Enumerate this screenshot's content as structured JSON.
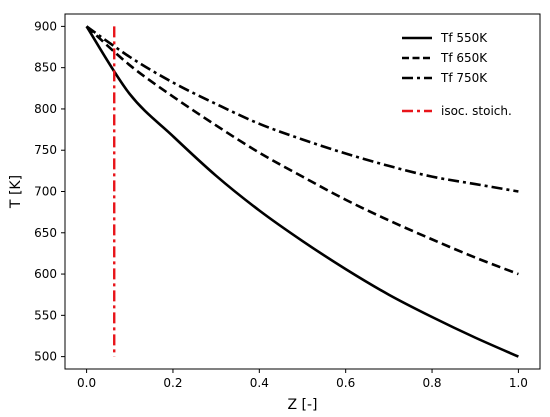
{
  "chart_data": {
    "type": "line",
    "xlabel": "Z [-]",
    "ylabel": "T [K]",
    "xlim": [
      -0.05,
      1.05
    ],
    "ylim": [
      485,
      915
    ],
    "xticks": [
      0.0,
      0.2,
      0.4,
      0.6,
      0.8,
      1.0
    ],
    "xtick_labels": [
      "0.0",
      "0.2",
      "0.4",
      "0.6",
      "0.8",
      "1.0"
    ],
    "yticks": [
      500,
      550,
      600,
      650,
      700,
      750,
      800,
      850,
      900
    ],
    "ytick_labels": [
      "500",
      "550",
      "600",
      "650",
      "700",
      "750",
      "800",
      "850",
      "900"
    ],
    "x": [
      0.0,
      0.1,
      0.2,
      0.3,
      0.4,
      0.5,
      0.6,
      0.7,
      0.8,
      0.9,
      1.0
    ],
    "series": [
      {
        "name": "Tf 550K",
        "style": "solid",
        "color": "#000000",
        "values": [
          900,
          818,
          767,
          719,
          677,
          640,
          606,
          575,
          548,
          523,
          500
        ]
      },
      {
        "name": "Tf 650K",
        "style": "dashed",
        "color": "#000000",
        "values": [
          900,
          853,
          815,
          780,
          747,
          718,
          690,
          665,
          642,
          620,
          600
        ]
      },
      {
        "name": "Tf 750K",
        "style": "dashdot",
        "color": "#000000",
        "values": [
          900,
          863,
          832,
          806,
          782,
          763,
          746,
          731,
          718,
          709,
          700
        ]
      }
    ],
    "reference_line": {
      "name": "isoc. stoich.",
      "x": 0.064,
      "style": "dashdot",
      "color": "#e8141a"
    },
    "legend_position": "top-right",
    "grid": false
  }
}
